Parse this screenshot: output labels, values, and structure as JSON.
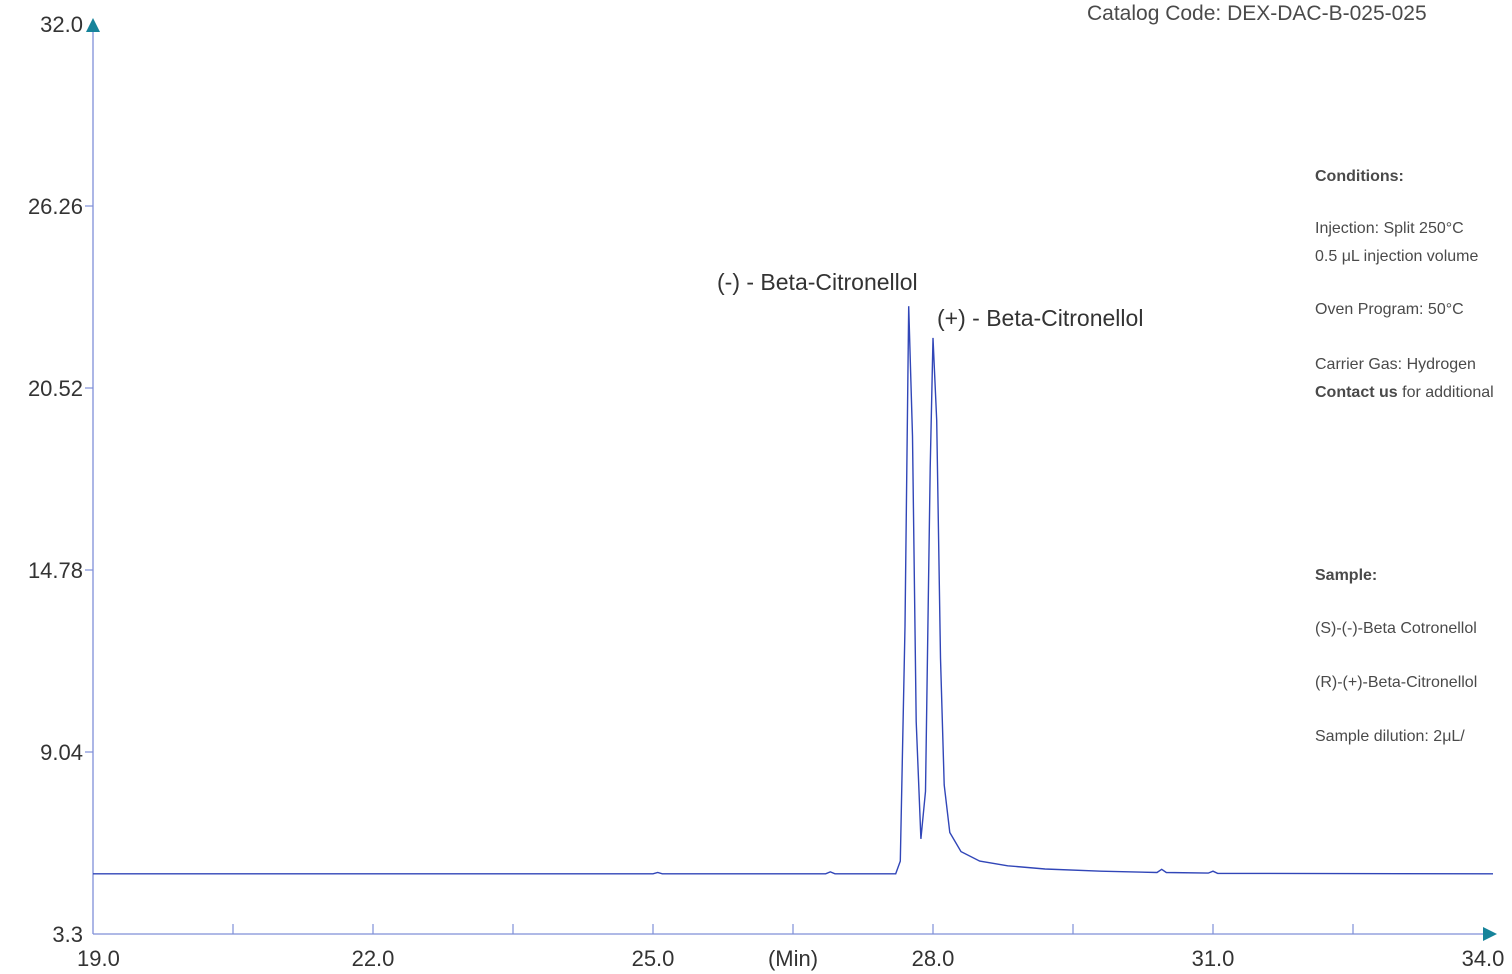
{
  "header": {
    "catalog": "Catalog Code: DEX-DAC-B-025-025"
  },
  "conditions": {
    "heading": "Conditions:",
    "injection": "Injection: Split 250°C",
    "injection_volume": "0.5 μL injection volume",
    "oven": "Oven Program: 50°C",
    "carrier": "Carrier Gas: Hydrogen",
    "contact_bold": "Contact us",
    "contact_rest": " for additional"
  },
  "sample": {
    "heading": "Sample:",
    "item1": "(S)-(-)-Beta Cotronellol",
    "item2": "(R)-(+)-Beta-Citronellol",
    "dilution": "Sample dilution: 2μL/"
  },
  "colors": {
    "trace": "#3146b8",
    "axis": "#7f8fd8",
    "arrow": "#16839a",
    "text": "#333333"
  },
  "chart_data": {
    "type": "line",
    "title": "",
    "xlabel": "(Min)",
    "ylabel": "",
    "xlim": [
      19.0,
      34.0
    ],
    "ylim": [
      3.3,
      32.0
    ],
    "x_ticks": [
      "19.0",
      "22.0",
      "25.0",
      "28.0",
      "31.0",
      "34.0"
    ],
    "y_ticks": [
      "3.3",
      "9.04",
      "14.78",
      "20.52",
      "26.26",
      "32.0"
    ],
    "baseline": 5.2,
    "peaks": [
      {
        "name": "(-) - Beta-Citronellol",
        "rt": 27.75,
        "height": 23.1
      },
      {
        "name": "(+) - Beta-Citronellol",
        "rt": 28.0,
        "height": 22.1
      }
    ],
    "series": [
      {
        "values": [
          [
            19.0,
            5.2
          ],
          [
            25.0,
            5.2
          ],
          [
            25.05,
            5.24
          ],
          [
            25.1,
            5.2
          ],
          [
            26.85,
            5.2
          ],
          [
            26.9,
            5.26
          ],
          [
            26.95,
            5.2
          ],
          [
            27.6,
            5.2
          ],
          [
            27.65,
            5.6
          ],
          [
            27.7,
            13.0
          ],
          [
            27.74,
            23.1
          ],
          [
            27.78,
            19.0
          ],
          [
            27.82,
            10.0
          ],
          [
            27.87,
            6.3
          ],
          [
            27.92,
            7.8
          ],
          [
            27.97,
            18.0
          ],
          [
            28.0,
            22.1
          ],
          [
            28.04,
            19.5
          ],
          [
            28.08,
            12.0
          ],
          [
            28.12,
            8.0
          ],
          [
            28.18,
            6.5
          ],
          [
            28.3,
            5.9
          ],
          [
            28.5,
            5.6
          ],
          [
            28.8,
            5.45
          ],
          [
            29.2,
            5.35
          ],
          [
            29.8,
            5.28
          ],
          [
            30.4,
            5.24
          ],
          [
            30.45,
            5.34
          ],
          [
            30.5,
            5.24
          ],
          [
            30.95,
            5.22
          ],
          [
            31.0,
            5.28
          ],
          [
            31.05,
            5.21
          ],
          [
            34.0,
            5.2
          ]
        ]
      }
    ]
  }
}
